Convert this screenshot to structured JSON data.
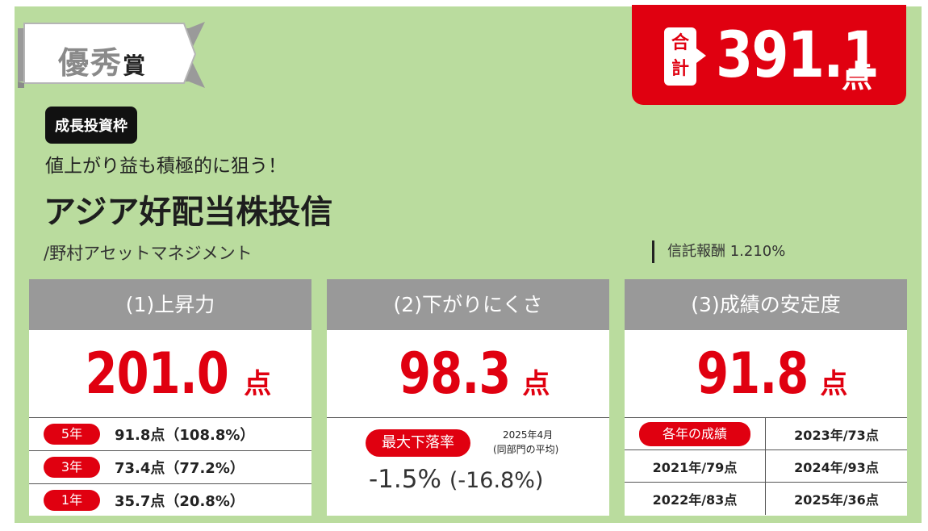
{
  "award": {
    "label_main": "優秀",
    "label_small": "賞"
  },
  "total": {
    "badge": "合計",
    "value": "391.1",
    "unit": "点"
  },
  "category": "成長投資枠",
  "tagline": "値上がり益も積極的に狙う！",
  "fund_name": "アジア好配当株投信",
  "company": "/野村アセットマネジメント",
  "fee": "信託報酬 1.210%",
  "colors": {
    "accent_red": "#e00010",
    "panel_green": "#badc9e",
    "header_gray": "#999999"
  },
  "cards": {
    "rise": {
      "title": "(1)上昇力",
      "score": "201.0",
      "unit": "点",
      "rows": [
        {
          "label": "5年",
          "value": "91.8点（108.8%）"
        },
        {
          "label": "3年",
          "value": "73.4点（77.2%）"
        },
        {
          "label": "1年",
          "value": "35.7点（20.8%）"
        }
      ]
    },
    "drop": {
      "title": "(2)下がりにくさ",
      "score": "98.3",
      "unit": "点",
      "pill": "最大下落率",
      "note1": "2025年4月",
      "note2": "(同部門の平均)",
      "value": "-1.5%",
      "avg": "(-16.8%)"
    },
    "stability": {
      "title": "(3)成績の安定度",
      "score": "91.8",
      "unit": "点",
      "pill": "各年の成績",
      "years": [
        "2023年/73点",
        "2021年/79点",
        "2024年/93点",
        "2022年/83点",
        "2025年/36点"
      ]
    }
  }
}
